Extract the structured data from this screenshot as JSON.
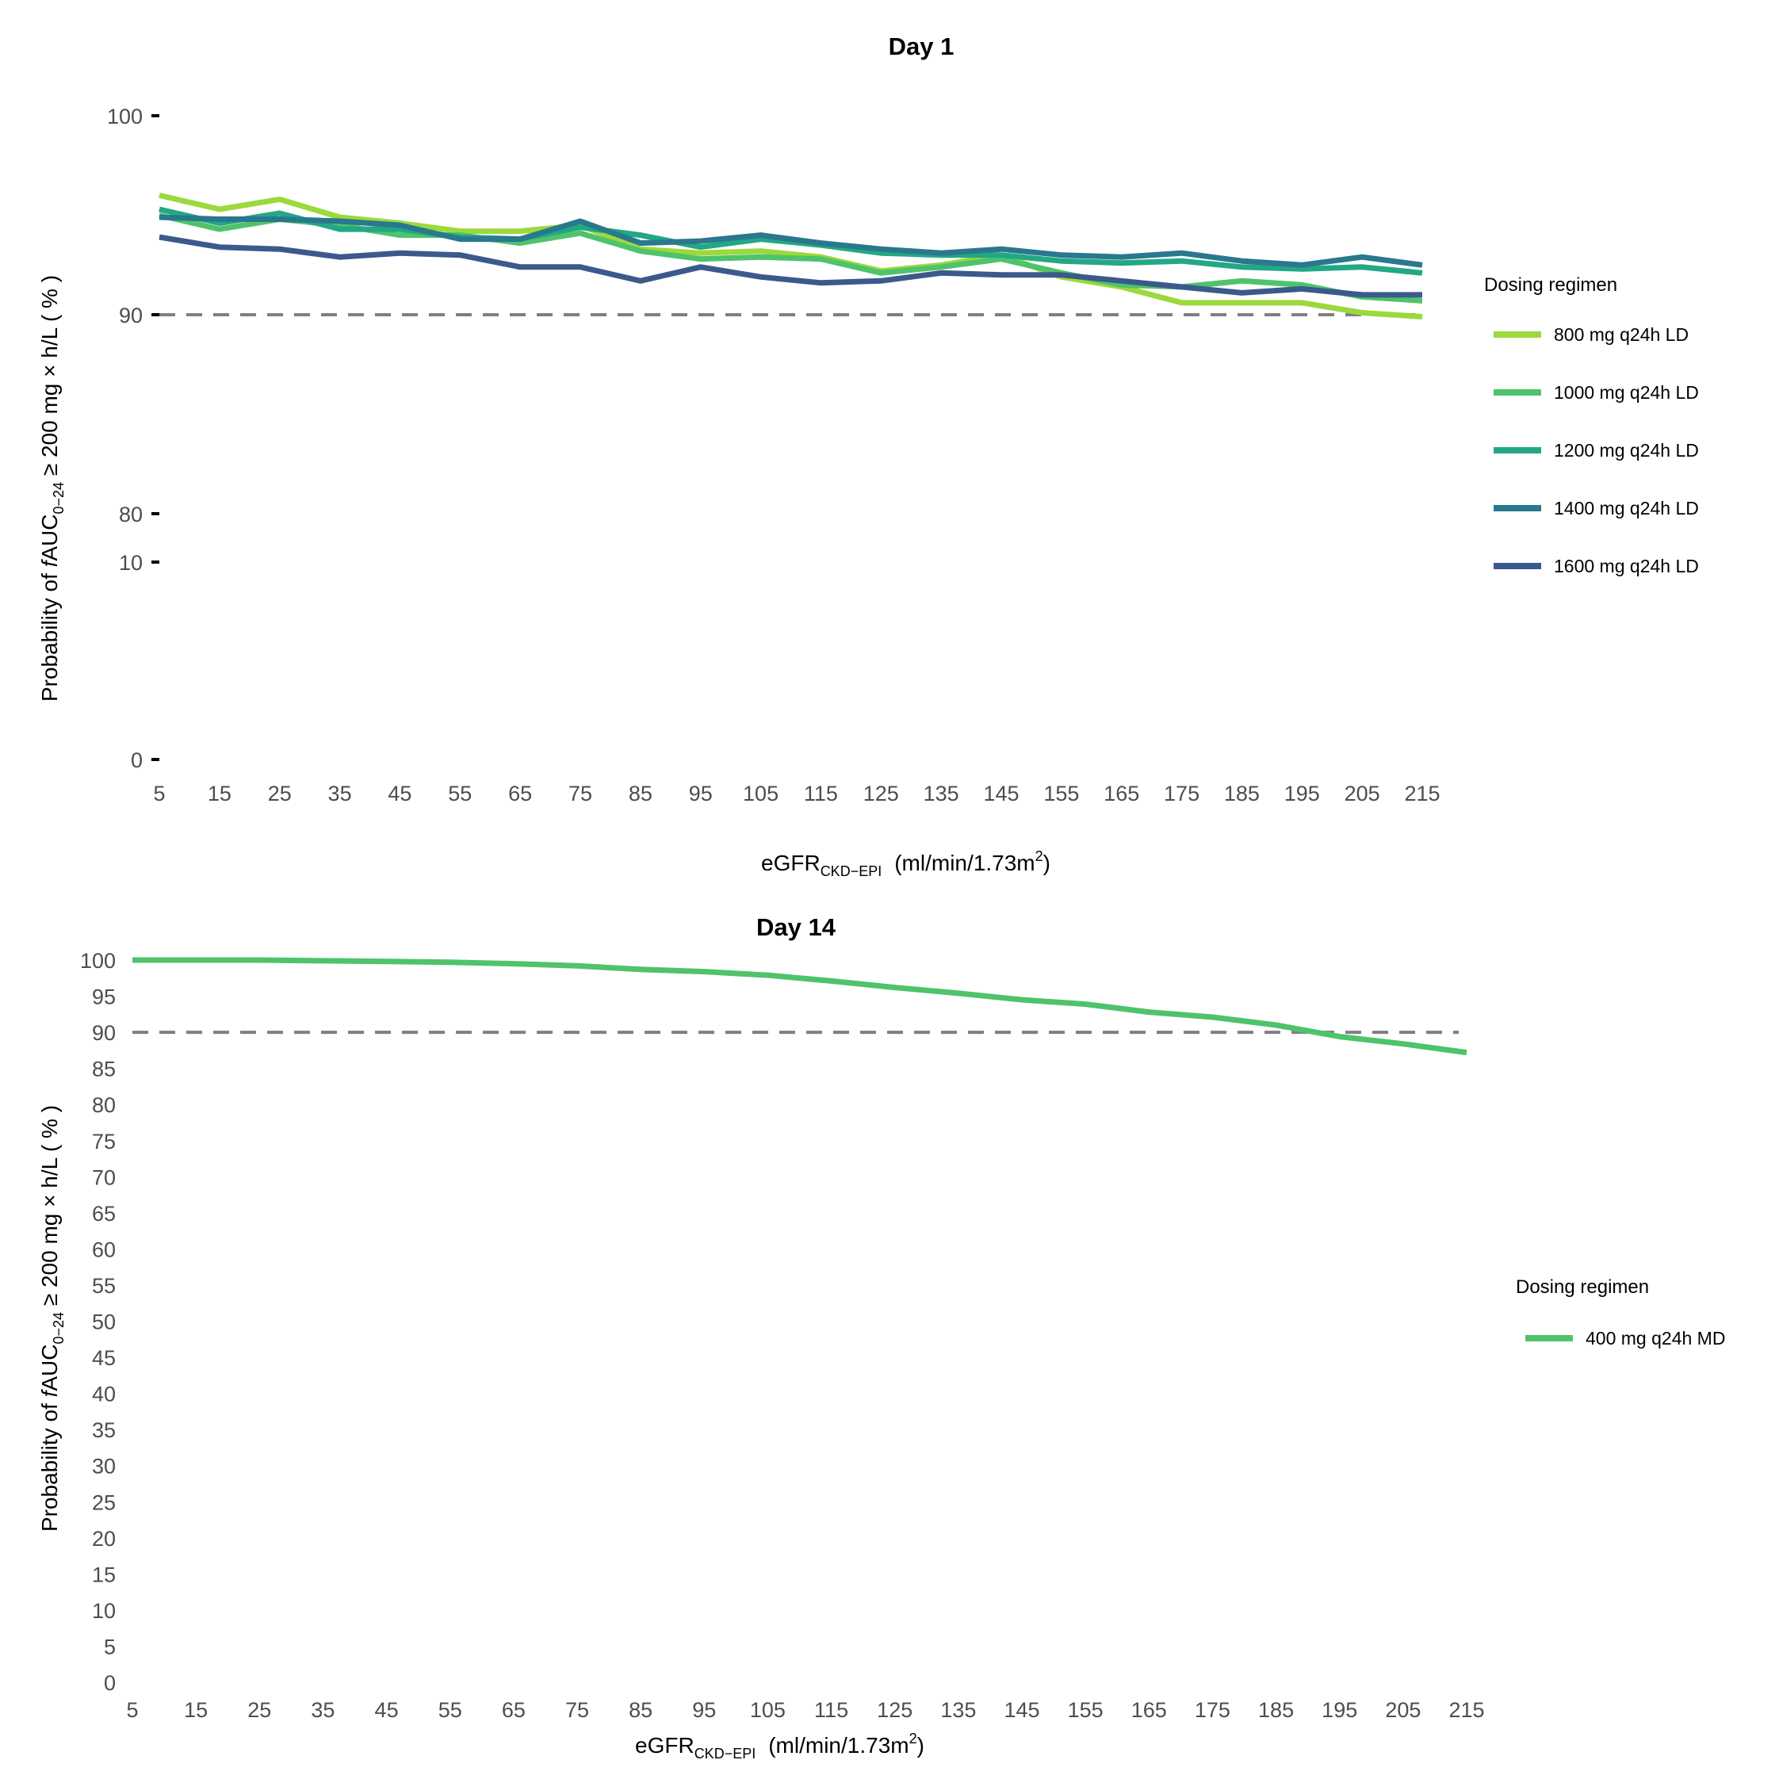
{
  "colors": {
    "reference": "#7f7f7f",
    "tick_text": "#4d4d4d"
  },
  "chart_data": [
    {
      "type": "line",
      "title": "Day 1",
      "xlabel": {
        "main": "eGFR",
        "sub": "CKD−EPI",
        "units": "(ml/min/1.73m",
        "sup": "2",
        "close": ")"
      },
      "ylabel": {
        "pre": "Probability  of  ",
        "italic": "f",
        "main": "AUC",
        "sub": "0−24",
        "post": "  ≥ 200 mg × h/L  ( % )"
      },
      "x_ticks": [
        "5",
        "15",
        "25",
        "35",
        "45",
        "55",
        "65",
        "75",
        "85",
        "95",
        "105",
        "115",
        "125",
        "135",
        "145",
        "155",
        "165",
        "175",
        "185",
        "195",
        "205",
        "215"
      ],
      "y_ticks": [
        "0",
        "10",
        "80",
        "90",
        "100"
      ],
      "y_axis_break": "broken axis between 10 and 80",
      "reference_line": 90,
      "legend_title": "Dosing regimen",
      "legend_position": "right",
      "x": [
        5,
        15,
        25,
        35,
        45,
        55,
        65,
        75,
        85,
        95,
        105,
        115,
        125,
        135,
        145,
        155,
        165,
        175,
        185,
        195,
        205,
        215
      ],
      "series": [
        {
          "name": "800  mg  q24h LD",
          "color": "#9bd93c",
          "values": [
            96.0,
            95.3,
            95.8,
            94.9,
            94.6,
            94.2,
            94.2,
            94.5,
            93.3,
            93.1,
            93.2,
            92.9,
            92.2,
            92.5,
            93.0,
            91.9,
            91.4,
            90.6,
            90.6,
            90.6,
            90.1,
            89.9
          ]
        },
        {
          "name": "1000 mg  q24h LD",
          "color": "#4ec36b",
          "values": [
            95.0,
            94.3,
            94.8,
            94.5,
            94.0,
            94.0,
            93.6,
            94.1,
            93.2,
            92.8,
            92.9,
            92.8,
            92.1,
            92.4,
            92.8,
            92.1,
            91.5,
            91.4,
            91.7,
            91.5,
            90.9,
            90.7
          ]
        },
        {
          "name": "1200 mg  q24h LD",
          "color": "#22a884",
          "values": [
            95.3,
            94.6,
            95.1,
            94.3,
            94.3,
            93.9,
            93.8,
            94.4,
            94.0,
            93.4,
            93.8,
            93.5,
            93.1,
            93.0,
            93.0,
            92.7,
            92.6,
            92.7,
            92.4,
            92.3,
            92.4,
            92.1
          ]
        },
        {
          "name": "1400 mg  q24h LD",
          "color": "#2a788e",
          "values": [
            94.9,
            94.8,
            94.8,
            94.7,
            94.5,
            93.8,
            93.8,
            94.7,
            93.6,
            93.7,
            94.0,
            93.6,
            93.3,
            93.1,
            93.3,
            93.0,
            92.9,
            93.1,
            92.7,
            92.5,
            92.9,
            92.5
          ]
        },
        {
          "name": "1600 mg  q24h LD",
          "color": "#3b5a8c",
          "values": [
            93.9,
            93.4,
            93.3,
            92.9,
            93.1,
            93.0,
            92.4,
            92.4,
            91.7,
            92.4,
            91.9,
            91.6,
            91.7,
            92.1,
            92.0,
            92.0,
            91.7,
            91.4,
            91.1,
            91.3,
            91.0,
            91.0
          ]
        }
      ]
    },
    {
      "type": "line",
      "title": "Day 14",
      "xlabel": {
        "main": "eGFR",
        "sub": "CKD−EPI",
        "units": "(ml/min/1.73m",
        "sup": "2",
        "close": ")"
      },
      "ylabel": {
        "pre": "Probability  of  ",
        "italic": "f",
        "main": "AUC",
        "sub": "0−24",
        "post": "  ≥ 200 mg × h/L  ( % )"
      },
      "x_ticks": [
        "5",
        "15",
        "25",
        "35",
        "45",
        "55",
        "65",
        "75",
        "85",
        "95",
        "105",
        "115",
        "125",
        "135",
        "145",
        "155",
        "165",
        "175",
        "185",
        "195",
        "205",
        "215"
      ],
      "y_ticks": [
        "0",
        "5",
        "10",
        "15",
        "20",
        "25",
        "30",
        "35",
        "40",
        "45",
        "50",
        "55",
        "60",
        "65",
        "70",
        "75",
        "80",
        "85",
        "90",
        "95",
        "100"
      ],
      "ylim": [
        0,
        100
      ],
      "xlim": [
        5,
        215
      ],
      "reference_line": 90,
      "legend_title": "Dosing regimen",
      "legend_position": "right",
      "x": [
        5,
        15,
        25,
        35,
        45,
        55,
        65,
        75,
        85,
        95,
        105,
        115,
        125,
        135,
        145,
        155,
        165,
        175,
        185,
        195,
        205,
        215
      ],
      "series": [
        {
          "name": "400 mg q24h MD",
          "color": "#4ec36b",
          "values": [
            100,
            100,
            100,
            99.9,
            99.8,
            99.7,
            99.5,
            99.2,
            98.7,
            98.4,
            97.9,
            97.1,
            96.2,
            95.4,
            94.5,
            93.9,
            92.8,
            92.1,
            91.0,
            89.4,
            88.4,
            87.2
          ]
        }
      ]
    }
  ]
}
